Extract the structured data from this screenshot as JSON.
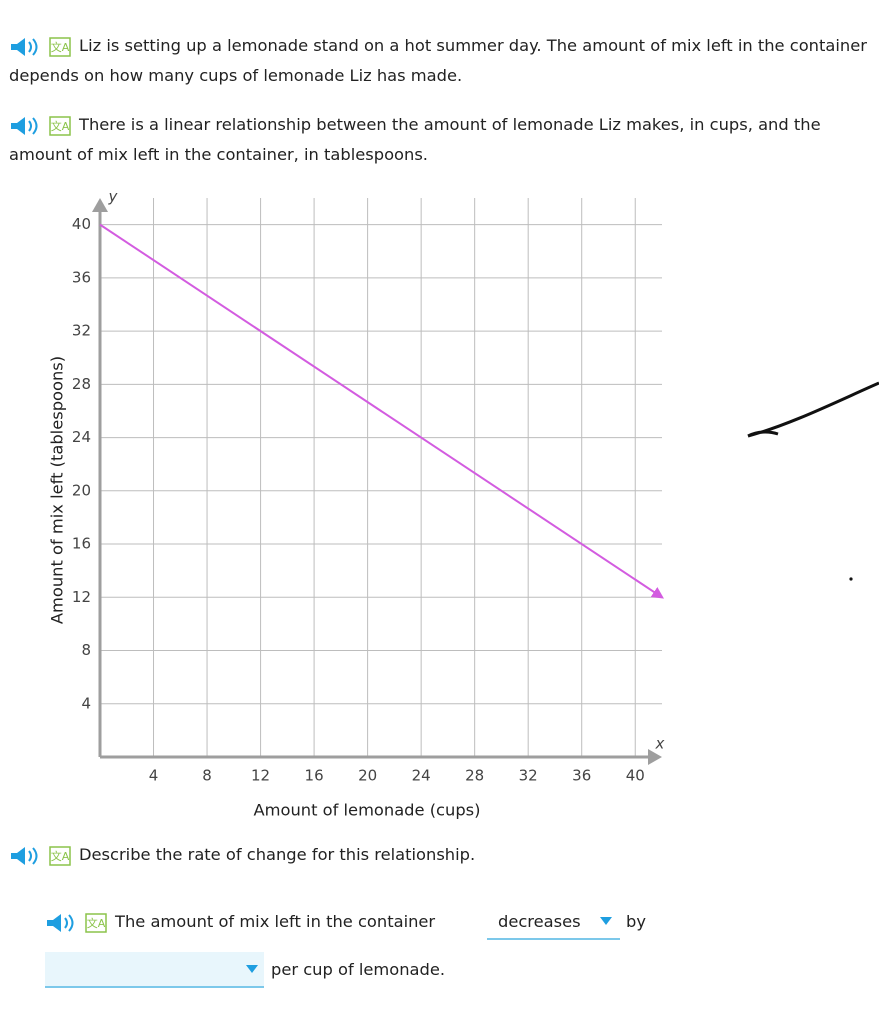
{
  "paragraphs": [
    "Liz is setting up a lemonade stand on a hot summer day. The amount of mix left in the container depends on how many cups of lemonade Liz has made.",
    "There is a linear relationship between the amount of lemonade Liz makes, in cups, and the amount of mix left in the container, in tablespoons."
  ],
  "chart_data": {
    "type": "line",
    "x": [
      0,
      42
    ],
    "values": [
      40,
      12
    ],
    "color": "#d35ce0",
    "xlabel": "Amount of lemonade (cups)",
    "ylabel": "Amount of mix left (tablespoons)",
    "x_axis_name": "x",
    "y_axis_name": "y",
    "xlim": [
      0,
      42
    ],
    "ylim": [
      0,
      42
    ],
    "xticks": [
      4,
      8,
      12,
      16,
      20,
      24,
      28,
      32,
      36,
      40
    ],
    "yticks": [
      4,
      8,
      12,
      16,
      20,
      24,
      28,
      32,
      36,
      40
    ],
    "grid": true
  },
  "question": "Describe the rate of change for this relationship.",
  "answer": {
    "before": "The amount of mix left in the container",
    "choice": "decreases",
    "middle": "by",
    "after": "per cup of lemonade."
  }
}
